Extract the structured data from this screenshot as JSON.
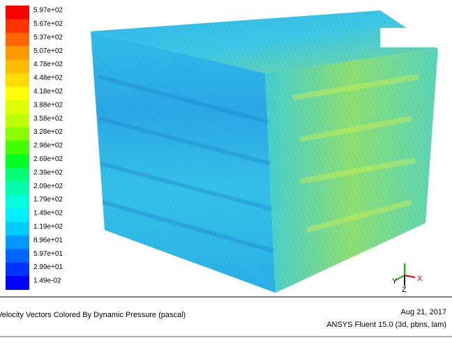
{
  "legend": {
    "labels": [
      "5.97e+02",
      "5.67e+02",
      "5.37e+02",
      "5.07e+02",
      "4.78e+02",
      "4.48e+02",
      "4.18e+02",
      "3.88e+02",
      "3.58e+02",
      "3.28e+02",
      "2.98e+02",
      "2.69e+02",
      "2.39e+02",
      "2.09e+02",
      "1.79e+02",
      "1.49e+02",
      "1.19e+02",
      "8.96e+01",
      "5.97e+01",
      "2.99e+01",
      "1.49e-02"
    ],
    "colors": [
      "#ff0000",
      "#ff3300",
      "#ff6600",
      "#ff9900",
      "#ffbb00",
      "#ffdd00",
      "#ffff00",
      "#ddff00",
      "#bbff00",
      "#88ff00",
      "#44ff00",
      "#00ff22",
      "#00ff77",
      "#00ffaa",
      "#00ffdd",
      "#00eeff",
      "#00ccff",
      "#0099ff",
      "#0066ff",
      "#0033ff",
      "#0000ff"
    ]
  },
  "triad": {
    "y": "Y",
    "z": "Z",
    "x": "X"
  },
  "footer": {
    "caption": "Velocity Vectors Colored By Dynamic Pressure (pascal)",
    "date": "Aug 21, 2017",
    "version": "ANSYS Fluent 15.0 (3d, pbns, lam)"
  }
}
